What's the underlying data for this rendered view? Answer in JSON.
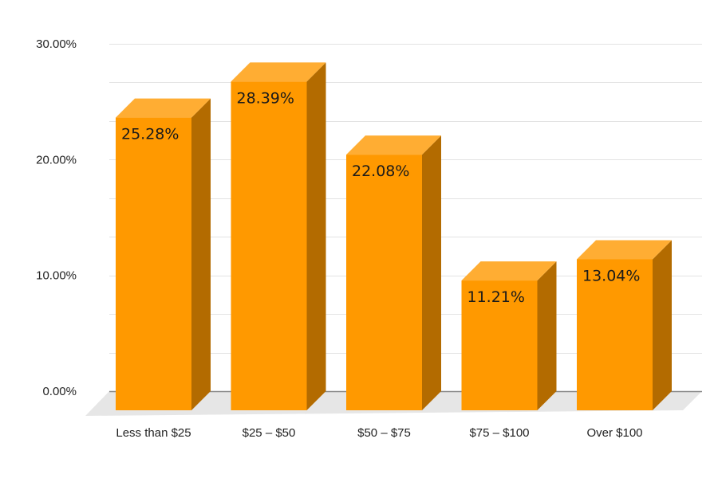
{
  "chart_data": {
    "type": "bar",
    "style": "3d",
    "title": "",
    "xlabel": "",
    "ylabel": "",
    "categories": [
      "Less than $25",
      "$25 – $50",
      "$50 – $75",
      "$75 – $100",
      "Over $100"
    ],
    "values": [
      25.28,
      28.39,
      22.08,
      11.21,
      13.04
    ],
    "data_labels": [
      "25.28%",
      "28.39%",
      "22.08%",
      "11.21%",
      "13.04%"
    ],
    "ylim": [
      0,
      30
    ],
    "y_ticks": [
      0,
      10,
      20,
      30
    ],
    "y_tick_labels": [
      "0.00%",
      "10.00%",
      "20.00%",
      "30.00%"
    ],
    "grid": true,
    "legend": "none",
    "colors": {
      "bar_front": "#ff9900",
      "bar_top": "#ffad33",
      "bar_side": "#b36b00",
      "floor": "#e6e6e6",
      "gridline": "#e3e3e3",
      "axis_line": "#888888"
    }
  }
}
